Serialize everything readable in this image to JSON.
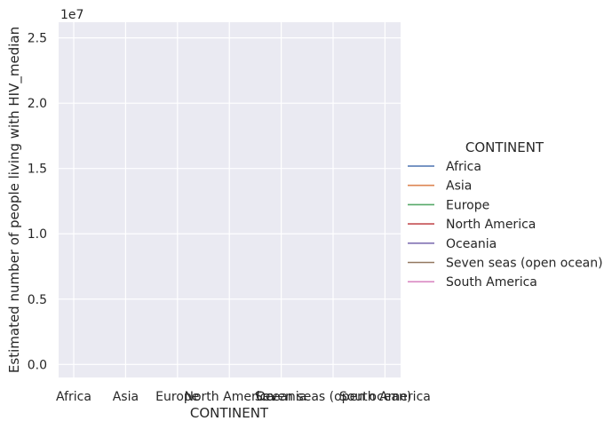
{
  "chart_data": {
    "type": "line",
    "categories": [
      "Africa",
      "Asia",
      "Europe",
      "North America",
      "Oceania",
      "Seven seas (open ocean)",
      "South America"
    ],
    "xlabel": "CONTINENT",
    "ylabel": "Estimated number of people living with HIV_median",
    "y_offset_label": "1e7",
    "y_scale_factor": 10000000,
    "ylim": [
      -0.1,
      2.62
    ],
    "yticks": [
      0.0,
      0.5,
      1.0,
      1.5,
      2.0,
      2.5
    ],
    "grid": true,
    "legend": {
      "title": "CONTINENT",
      "placement": "right",
      "entries": [
        {
          "name": "Africa",
          "color": "#4c72b0"
        },
        {
          "name": "Asia",
          "color": "#dd8452"
        },
        {
          "name": "Europe",
          "color": "#55a868"
        },
        {
          "name": "North America",
          "color": "#c44e52"
        },
        {
          "name": "Oceania",
          "color": "#8172b3"
        },
        {
          "name": "Seven seas (open ocean)",
          "color": "#937860"
        },
        {
          "name": "South America",
          "color": "#da8bc3"
        }
      ]
    },
    "series": []
  },
  "colors": {
    "plot_background": "#eaeaf2",
    "grid": "#ffffff",
    "text": "#262626"
  }
}
